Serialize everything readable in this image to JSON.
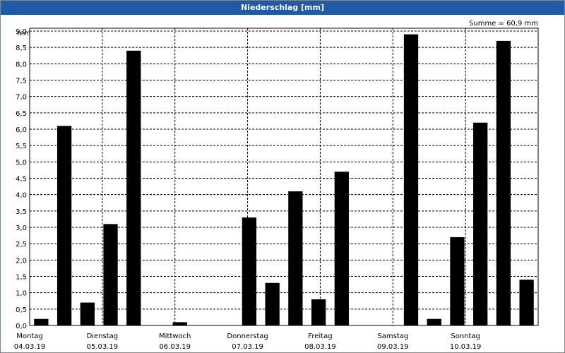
{
  "title": "Niederschlag [mm]",
  "summe": "Summe = 60,9 mm",
  "unit": "mm",
  "colors": {
    "title_bar": "#1e5aa8",
    "bar": "#000000",
    "grid": "#000000"
  },
  "chart_data": {
    "type": "bar",
    "title": "Niederschlag [mm]",
    "ylabel": "mm",
    "ylim": [
      0,
      9.0
    ],
    "yticks": [
      "0,0",
      "0,5",
      "1,0",
      "1,5",
      "2,0",
      "2,5",
      "3,0",
      "3,5",
      "4,0",
      "4,5",
      "5,0",
      "5,5",
      "6,0",
      "6,5",
      "7,0",
      "7,5",
      "8,0",
      "8,5",
      "9,0"
    ],
    "grid": true,
    "days": [
      {
        "name": "Montag",
        "date": "04.03.19"
      },
      {
        "name": "Dienstag",
        "date": "05.03.19"
      },
      {
        "name": "Mittwoch",
        "date": "06.03.19"
      },
      {
        "name": "Donnerstag",
        "date": "07.03.19"
      },
      {
        "name": "Freitag",
        "date": "08.03.19"
      },
      {
        "name": "Samstag",
        "date": "09.03.19"
      },
      {
        "name": "Sonntag",
        "date": "10.03.19"
      }
    ],
    "values": [
      0.2,
      6.1,
      0.7,
      3.1,
      8.4,
      0.0,
      0.1,
      0.0,
      0.0,
      3.3,
      1.3,
      4.1,
      0.8,
      4.7,
      0.0,
      0.0,
      8.9,
      0.2,
      2.7,
      6.2,
      8.7,
      1.4
    ]
  }
}
